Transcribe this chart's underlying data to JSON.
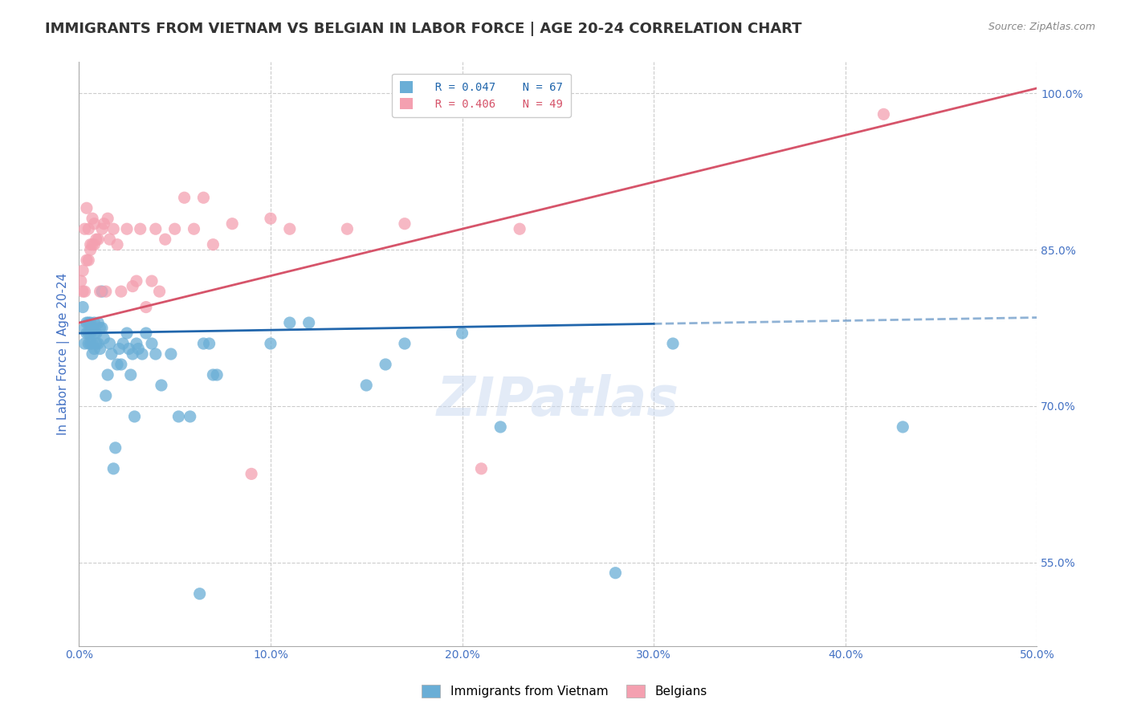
{
  "title": "IMMIGRANTS FROM VIETNAM VS BELGIAN IN LABOR FORCE | AGE 20-24 CORRELATION CHART",
  "source_text": "Source: ZipAtlas.com",
  "ylabel": "In Labor Force | Age 20-24",
  "xlabel": "",
  "xlim": [
    0.0,
    0.5
  ],
  "ylim": [
    0.47,
    1.03
  ],
  "xtick_labels": [
    "0.0%",
    "10.0%",
    "20.0%",
    "30.0%",
    "40.0%",
    "50.0%"
  ],
  "xtick_values": [
    0.0,
    0.1,
    0.2,
    0.3,
    0.4,
    0.5
  ],
  "ytick_labels": [
    "55.0%",
    "70.0%",
    "85.0%",
    "100.0%"
  ],
  "ytick_values": [
    0.55,
    0.7,
    0.85,
    1.0
  ],
  "legend_blue_label": "Immigrants from Vietnam",
  "legend_pink_label": "Belgians",
  "legend_blue_R": "R = 0.047",
  "legend_blue_N": "N = 67",
  "legend_pink_R": "R = 0.406",
  "legend_pink_N": "N = 49",
  "blue_color": "#6aaed6",
  "pink_color": "#f4a0b0",
  "blue_line_color": "#2166ac",
  "pink_line_color": "#d6546a",
  "watermark": "ZIPatlas",
  "blue_scatter_x": [
    0.002,
    0.003,
    0.003,
    0.004,
    0.004,
    0.005,
    0.005,
    0.005,
    0.006,
    0.006,
    0.006,
    0.007,
    0.007,
    0.007,
    0.008,
    0.008,
    0.008,
    0.009,
    0.009,
    0.01,
    0.01,
    0.011,
    0.011,
    0.012,
    0.012,
    0.013,
    0.014,
    0.015,
    0.016,
    0.017,
    0.018,
    0.019,
    0.02,
    0.021,
    0.022,
    0.023,
    0.025,
    0.026,
    0.027,
    0.028,
    0.029,
    0.03,
    0.031,
    0.033,
    0.035,
    0.038,
    0.04,
    0.043,
    0.048,
    0.052,
    0.058,
    0.063,
    0.065,
    0.068,
    0.07,
    0.072,
    0.1,
    0.11,
    0.12,
    0.15,
    0.16,
    0.17,
    0.2,
    0.22,
    0.28,
    0.31,
    0.43
  ],
  "blue_scatter_y": [
    0.795,
    0.775,
    0.76,
    0.78,
    0.77,
    0.78,
    0.77,
    0.76,
    0.78,
    0.77,
    0.76,
    0.775,
    0.76,
    0.75,
    0.78,
    0.77,
    0.755,
    0.77,
    0.76,
    0.78,
    0.76,
    0.775,
    0.755,
    0.81,
    0.775,
    0.765,
    0.71,
    0.73,
    0.76,
    0.75,
    0.64,
    0.66,
    0.74,
    0.755,
    0.74,
    0.76,
    0.77,
    0.755,
    0.73,
    0.75,
    0.69,
    0.76,
    0.755,
    0.75,
    0.77,
    0.76,
    0.75,
    0.72,
    0.75,
    0.69,
    0.69,
    0.52,
    0.76,
    0.76,
    0.73,
    0.73,
    0.76,
    0.78,
    0.78,
    0.72,
    0.74,
    0.76,
    0.77,
    0.68,
    0.54,
    0.76,
    0.68
  ],
  "pink_scatter_x": [
    0.001,
    0.002,
    0.002,
    0.003,
    0.003,
    0.004,
    0.004,
    0.005,
    0.005,
    0.006,
    0.006,
    0.007,
    0.007,
    0.008,
    0.008,
    0.009,
    0.01,
    0.011,
    0.012,
    0.013,
    0.014,
    0.015,
    0.016,
    0.018,
    0.02,
    0.022,
    0.025,
    0.028,
    0.03,
    0.032,
    0.035,
    0.038,
    0.04,
    0.042,
    0.045,
    0.05,
    0.055,
    0.06,
    0.065,
    0.07,
    0.08,
    0.09,
    0.1,
    0.11,
    0.14,
    0.17,
    0.21,
    0.23,
    0.42
  ],
  "pink_scatter_y": [
    0.82,
    0.83,
    0.81,
    0.87,
    0.81,
    0.89,
    0.84,
    0.87,
    0.84,
    0.855,
    0.85,
    0.88,
    0.855,
    0.875,
    0.855,
    0.86,
    0.86,
    0.81,
    0.87,
    0.875,
    0.81,
    0.88,
    0.86,
    0.87,
    0.855,
    0.81,
    0.87,
    0.815,
    0.82,
    0.87,
    0.795,
    0.82,
    0.87,
    0.81,
    0.86,
    0.87,
    0.9,
    0.87,
    0.9,
    0.855,
    0.875,
    0.635,
    0.88,
    0.87,
    0.87,
    0.875,
    0.64,
    0.87,
    0.98
  ],
  "blue_trend_x": [
    0.0,
    0.5
  ],
  "blue_trend_y": [
    0.77,
    0.785
  ],
  "blue_trend_solid_end": 0.3,
  "pink_trend_x": [
    0.0,
    0.5
  ],
  "pink_trend_y": [
    0.78,
    1.005
  ],
  "title_fontsize": 13,
  "axis_label_fontsize": 11,
  "tick_fontsize": 10,
  "legend_fontsize": 12,
  "source_fontsize": 9,
  "background_color": "#ffffff",
  "grid_color": "#cccccc",
  "ylabel_color": "#4472c4",
  "ytick_color": "#4472c4",
  "xtick_color": "#4472c4"
}
